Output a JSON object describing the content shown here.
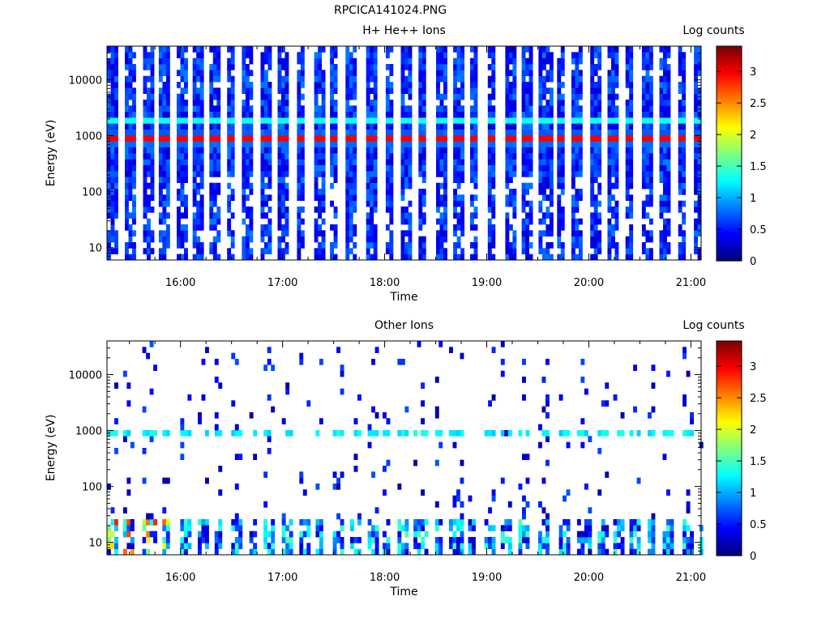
{
  "page_title": "RPCICA141024.PNG",
  "chart_data": [
    {
      "type": "heatmap",
      "title": "H+ He++ Ions",
      "xlabel": "Time",
      "ylabel": "Energy (eV)",
      "x_ticks": [
        "16:00",
        "17:00",
        "18:00",
        "19:00",
        "20:00",
        "21:00"
      ],
      "y_ticks": [
        "10",
        "100",
        "1000",
        "10000"
      ],
      "y_scale": "log",
      "ylim": [
        6,
        40000
      ],
      "xlim_hours": [
        15.28,
        21.1
      ],
      "colorbar": {
        "label": "Log counts",
        "ticks": [
          "0",
          "0.5",
          "1",
          "1.5",
          "2",
          "2.5",
          "3"
        ],
        "range": [
          0,
          3.4
        ],
        "colormap": "jet"
      },
      "description_of_features": {
        "peak_band_energy_eV": 900,
        "peak_level_log_counts": 3.0,
        "secondary_band_energy_eV": 2000,
        "secondary_level_log_counts": 1.6
      }
    },
    {
      "type": "heatmap",
      "title": "Other Ions",
      "xlabel": "Time",
      "ylabel": "Energy (eV)",
      "x_ticks": [
        "16:00",
        "17:00",
        "18:00",
        "19:00",
        "20:00",
        "21:00"
      ],
      "y_ticks": [
        "10",
        "100",
        "1000",
        "10000"
      ],
      "y_scale": "log",
      "ylim": [
        6,
        40000
      ],
      "xlim_hours": [
        15.28,
        21.1
      ],
      "colorbar": {
        "label": "Log counts",
        "ticks": [
          "0",
          "0.5",
          "1",
          "1.5",
          "2",
          "2.5",
          "3"
        ],
        "range": [
          0,
          3.4
        ],
        "colormap": "jet"
      },
      "description_of_features": {
        "band_energy_eV": 900,
        "band_level_log_counts": 1.1,
        "low_energy_peak_log_counts": 2.7
      }
    }
  ]
}
